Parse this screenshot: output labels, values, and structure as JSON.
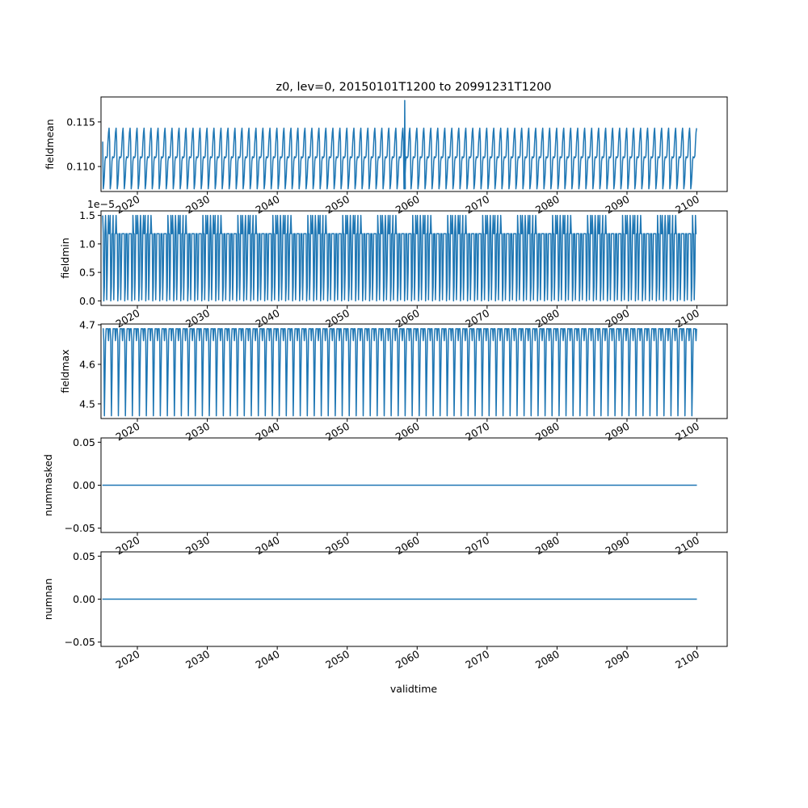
{
  "chart_data": {
    "type": "line",
    "title": "z0, lev=0, 20150101T1200 to 20991231T1200",
    "xlabel": "validtime",
    "x_range": [
      "2015-01-01",
      "2099-12-31"
    ],
    "xlim": [
      "2014-10-20",
      "2104-05-01"
    ],
    "x_ticks": [
      "2020",
      "2030",
      "2040",
      "2050",
      "2060",
      "2070",
      "2080",
      "2090",
      "2100"
    ],
    "series_color": "#1f77b4",
    "panels": [
      {
        "ylabel": "fieldmean",
        "ylim": [
          0.1072,
          0.1178
        ],
        "y_ticks": [
          "0.110",
          "0.115"
        ],
        "y_tick_values": [
          0.11,
          0.115
        ],
        "offset_label": "",
        "yearly_profile": [
          0.1128,
          0.1075,
          0.108,
          0.109,
          0.1106,
          0.1111,
          0.111,
          0.111,
          0.1112,
          0.1126,
          0.1138,
          0.1143
        ],
        "spike": {
          "date": "2058-03-01",
          "value": 0.1174
        }
      },
      {
        "ylabel": "fieldmin",
        "ylim": [
          -0.08,
          1.58
        ],
        "y_ticks": [
          "0.0",
          "0.5",
          "1.0",
          "1.5"
        ],
        "y_tick_values": [
          0,
          0.5,
          1.0,
          1.5
        ],
        "offset_label": "1e−5",
        "yearly_profile": [
          1.18,
          1.18,
          0.0,
          0.25,
          1.18,
          1.18,
          1.18,
          0.02,
          0.5,
          1.18,
          1.18,
          1.18
        ],
        "alt_high": 1.5
      },
      {
        "ylabel": "fieldmax",
        "ylim": [
          4.463,
          4.702
        ],
        "y_ticks": [
          "4.5",
          "4.6",
          "4.7"
        ],
        "y_tick_values": [
          4.5,
          4.6,
          4.7
        ],
        "offset_label": "",
        "yearly_profile": [
          4.69,
          4.69,
          4.66,
          4.47,
          4.56,
          4.66,
          4.69,
          4.69,
          4.69,
          4.69,
          4.66,
          4.69
        ]
      },
      {
        "ylabel": "nummasked",
        "ylim": [
          -0.055,
          0.055
        ],
        "y_ticks": [
          "−0.05",
          "0.00",
          "0.05"
        ],
        "y_tick_values": [
          -0.05,
          0,
          0.05
        ],
        "offset_label": "",
        "constant": 0
      },
      {
        "ylabel": "numnan",
        "ylim": [
          -0.055,
          0.055
        ],
        "y_ticks": [
          "−0.05",
          "0.00",
          "0.05"
        ],
        "y_tick_values": [
          -0.05,
          0,
          0.05
        ],
        "offset_label": "",
        "constant": 0
      }
    ]
  }
}
